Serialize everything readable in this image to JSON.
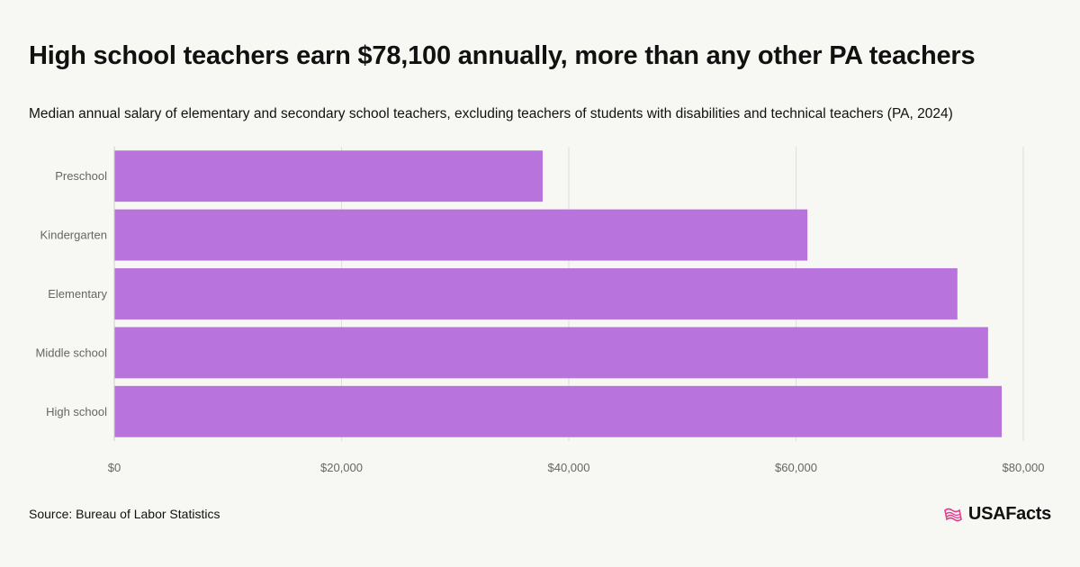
{
  "title": "High school teachers earn $78,100 annually, more than any other PA teachers",
  "subtitle": "Median annual salary of elementary and secondary school teachers, excluding teachers of students with disabilities and technical teachers (PA, 2024)",
  "source": "Source: Bureau of Labor Statistics",
  "brand": "USAFacts",
  "colors": {
    "bar": "#b873dd",
    "grid": "#dedede",
    "axis_text": "#666666",
    "logo_accent": "#e0408f"
  },
  "chart_data": {
    "type": "bar",
    "orientation": "horizontal",
    "categories": [
      "Preschool",
      "Kindergarten",
      "Elementary",
      "Middle school",
      "High school"
    ],
    "values": [
      37700,
      61000,
      74200,
      76900,
      78100
    ],
    "xlim": [
      0,
      80000
    ],
    "x_ticks": [
      0,
      20000,
      40000,
      60000,
      80000
    ],
    "x_tick_labels": [
      "$0",
      "$20,000",
      "$40,000",
      "$60,000",
      "$80,000"
    ],
    "grid": true
  }
}
